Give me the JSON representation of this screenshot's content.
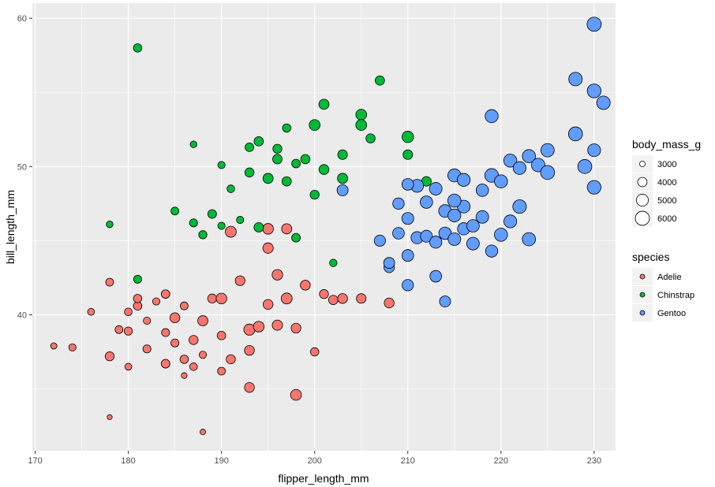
{
  "chart_data": {
    "type": "scatter",
    "xlabel": "flipper_length_mm",
    "ylabel": "bill_length_mm",
    "xlim": [
      169.7,
      232.3
    ],
    "ylim": [
      30.83,
      61.02
    ],
    "x_ticks": [
      170,
      180,
      190,
      200,
      210,
      220,
      230
    ],
    "y_ticks": [
      40,
      50,
      60
    ],
    "x_tick_labels": [
      "170",
      "180",
      "190",
      "200",
      "210",
      "220",
      "230"
    ],
    "y_tick_labels": [
      "40",
      "50",
      "60"
    ],
    "grid": true,
    "panel_background": "#ebebeb",
    "size_legend": {
      "title": "body_mass_g",
      "entries": [
        {
          "label": "3000",
          "value": 3000
        },
        {
          "label": "4000",
          "value": 4000
        },
        {
          "label": "5000",
          "value": 5000
        },
        {
          "label": "6000",
          "value": 6000
        }
      ]
    },
    "color_legend": {
      "title": "species",
      "placement": "right"
    },
    "series": [
      {
        "name": "Adelie",
        "color": "#f8766d",
        "points": [
          [
            172,
            37.9,
            3150
          ],
          [
            174,
            37.8,
            3400
          ],
          [
            176,
            40.2,
            3300
          ],
          [
            178,
            37.2,
            3900
          ],
          [
            178,
            33.1,
            2900
          ],
          [
            178,
            42.2,
            3550
          ],
          [
            179,
            39.0,
            3550
          ],
          [
            180,
            36.5,
            3300
          ],
          [
            180,
            38.9,
            3650
          ],
          [
            180,
            40.2,
            3500
          ],
          [
            181,
            40.6,
            3750
          ],
          [
            181,
            41.1,
            3700
          ],
          [
            182,
            39.6,
            3400
          ],
          [
            182,
            37.7,
            3600
          ],
          [
            183,
            40.9,
            3400
          ],
          [
            184,
            36.7,
            3800
          ],
          [
            184,
            41.4,
            3750
          ],
          [
            185,
            39.8,
            4200
          ],
          [
            185,
            38.1,
            3600
          ],
          [
            186,
            35.9,
            3050
          ],
          [
            186,
            40.6,
            3550
          ],
          [
            187,
            38.3,
            3950
          ],
          [
            187,
            36.5,
            3500
          ],
          [
            188,
            39.6,
            4300
          ],
          [
            188,
            37.3,
            3400
          ],
          [
            189,
            41.1,
            3900
          ],
          [
            190,
            38.6,
            3750
          ],
          [
            190,
            36.2,
            3550
          ],
          [
            190,
            41.1,
            4500
          ],
          [
            191,
            37.0,
            3950
          ],
          [
            191,
            45.6,
            4600
          ],
          [
            192,
            42.3,
            4150
          ],
          [
            193,
            39.0,
            4700
          ],
          [
            193,
            35.1,
            4200
          ],
          [
            194,
            39.2,
            4500
          ],
          [
            195,
            40.7,
            4200
          ],
          [
            195,
            45.8,
            4500
          ],
          [
            196,
            39.3,
            4350
          ],
          [
            196,
            42.7,
            4450
          ],
          [
            197,
            41.1,
            4600
          ],
          [
            197,
            45.8,
            4300
          ],
          [
            198,
            39.1,
            4150
          ],
          [
            199,
            42.0,
            4200
          ],
          [
            200,
            37.5,
            3700
          ],
          [
            201,
            41.4,
            3900
          ],
          [
            202,
            41.0,
            4000
          ],
          [
            203,
            41.1,
            4200
          ],
          [
            205,
            41.1,
            4100
          ],
          [
            208,
            40.8,
            4200
          ],
          [
            210,
            44.1,
            3900
          ],
          [
            195,
            44.5,
            4400
          ],
          [
            198,
            34.6,
            4600
          ],
          [
            193,
            37.6,
            4200
          ],
          [
            188,
            32.1,
            3000
          ],
          [
            186,
            37.0,
            3700
          ],
          [
            184,
            38.8,
            3600
          ]
        ]
      },
      {
        "name": "Chinstrap",
        "color": "#00ba38",
        "points": [
          [
            178,
            46.1,
            3250
          ],
          [
            181,
            58.0,
            3700
          ],
          [
            181,
            42.4,
            3600
          ],
          [
            185,
            47.0,
            3550
          ],
          [
            187,
            51.5,
            3250
          ],
          [
            187,
            46.2,
            3600
          ],
          [
            188,
            45.4,
            3650
          ],
          [
            189,
            46.8,
            3800
          ],
          [
            190,
            50.1,
            3400
          ],
          [
            190,
            46.0,
            3400
          ],
          [
            191,
            48.5,
            3500
          ],
          [
            192,
            46.4,
            3400
          ],
          [
            193,
            51.3,
            3800
          ],
          [
            193,
            49.6,
            3950
          ],
          [
            194,
            51.7,
            4000
          ],
          [
            194,
            45.9,
            4050
          ],
          [
            195,
            49.2,
            4300
          ],
          [
            196,
            50.5,
            4050
          ],
          [
            197,
            52.6,
            3700
          ],
          [
            197,
            49.0,
            4000
          ],
          [
            198,
            50.2,
            3775
          ],
          [
            198,
            45.2,
            3800
          ],
          [
            199,
            50.5,
            4000
          ],
          [
            200,
            52.8,
            4550
          ],
          [
            200,
            48.1,
            3900
          ],
          [
            201,
            54.2,
            4300
          ],
          [
            201,
            49.8,
            4200
          ],
          [
            202,
            43.5,
            3450
          ],
          [
            203,
            50.8,
            4100
          ],
          [
            203,
            49.2,
            4300
          ],
          [
            205,
            53.5,
            4550
          ],
          [
            205,
            52.8,
            4550
          ],
          [
            206,
            51.9,
            3950
          ],
          [
            207,
            55.8,
            4000
          ],
          [
            210,
            52.0,
            4800
          ],
          [
            210,
            50.8,
            4100
          ],
          [
            212,
            49.0,
            4100
          ],
          [
            196,
            51.2,
            3900
          ]
        ]
      },
      {
        "name": "Gentoo",
        "color": "#619cff",
        "points": [
          [
            203,
            48.4,
            4650
          ],
          [
            207,
            45.0,
            4700
          ],
          [
            208,
            43.2,
            4450
          ],
          [
            208,
            43.5,
            4600
          ],
          [
            209,
            47.5,
            4800
          ],
          [
            209,
            45.5,
            4875
          ],
          [
            210,
            44.0,
            4900
          ],
          [
            210,
            46.5,
            5000
          ],
          [
            210,
            42.0,
            4750
          ],
          [
            211,
            45.2,
            5100
          ],
          [
            211,
            48.7,
            5400
          ],
          [
            212,
            45.3,
            5000
          ],
          [
            212,
            47.6,
            5200
          ],
          [
            213,
            44.9,
            5100
          ],
          [
            213,
            48.5,
            5300
          ],
          [
            214,
            45.5,
            5200
          ],
          [
            214,
            47.0,
            5350
          ],
          [
            215,
            45.1,
            5300
          ],
          [
            215,
            46.7,
            5400
          ],
          [
            215,
            49.4,
            5500
          ],
          [
            216,
            45.8,
            5150
          ],
          [
            216,
            47.3,
            5400
          ],
          [
            217,
            46.0,
            5250
          ],
          [
            217,
            44.8,
            5300
          ],
          [
            218,
            48.4,
            5200
          ],
          [
            218,
            46.6,
            5300
          ],
          [
            219,
            49.4,
            5800
          ],
          [
            219,
            44.3,
            5100
          ],
          [
            220,
            49.0,
            5500
          ],
          [
            220,
            45.4,
            5550
          ],
          [
            221,
            50.4,
            5500
          ],
          [
            221,
            46.3,
            5400
          ],
          [
            222,
            49.9,
            5400
          ],
          [
            222,
            47.3,
            5750
          ],
          [
            223,
            50.7,
            5550
          ],
          [
            223,
            45.1,
            5600
          ],
          [
            224,
            50.1,
            5700
          ],
          [
            225,
            51.1,
            5650
          ],
          [
            225,
            49.6,
            5950
          ],
          [
            228,
            52.2,
            5950
          ],
          [
            228,
            55.9,
            5700
          ],
          [
            229,
            50.0,
            5950
          ],
          [
            230,
            59.6,
            6050
          ],
          [
            230,
            55.1,
            5850
          ],
          [
            230,
            51.1,
            5400
          ],
          [
            230,
            48.6,
            5800
          ],
          [
            231,
            54.3,
            5700
          ],
          [
            214,
            40.9,
            4650
          ],
          [
            213,
            42.6,
            4875
          ],
          [
            219,
            53.4,
            5500
          ],
          [
            215,
            47.7,
            5550
          ],
          [
            216,
            49.1,
            5450
          ],
          [
            210,
            48.8,
            4900
          ]
        ]
      }
    ]
  }
}
